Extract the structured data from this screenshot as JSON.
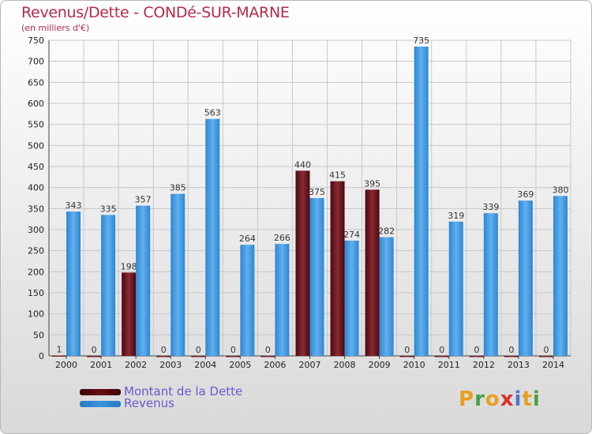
{
  "header": {
    "title": "Revenus/Dette - CONDé-SUR-MARNE",
    "subtitle": "(en milliers d'€)"
  },
  "legend": {
    "debt_label": "Montant de la Dette",
    "revenue_label": "Revenus"
  },
  "logo": {
    "letters": [
      "P",
      "r",
      "o",
      "x",
      "i",
      "t",
      "i"
    ],
    "colors": [
      "#e8a020",
      "#4aa04a",
      "#e8a020",
      "#d93030",
      "#4a7ad0",
      "#e8a020",
      "#4aa04a"
    ]
  },
  "colors": {
    "debt": "#6b0a14",
    "revenue": "#3a94dd",
    "title": "#b52a4a",
    "legend_text": "#6a5acd"
  },
  "chart_data": {
    "type": "bar",
    "categories": [
      "2000",
      "2001",
      "2002",
      "2003",
      "2004",
      "2005",
      "2006",
      "2007",
      "2008",
      "2009",
      "2010",
      "2011",
      "2012",
      "2013",
      "2014"
    ],
    "series": [
      {
        "name": "Montant de la Dette",
        "values": [
          1,
          0,
          198,
          0,
          0,
          0,
          0,
          440,
          415,
          395,
          0,
          0,
          0,
          0,
          0
        ]
      },
      {
        "name": "Revenus",
        "values": [
          343,
          335,
          357,
          385,
          563,
          264,
          266,
          375,
          274,
          282,
          735,
          319,
          339,
          369,
          380
        ]
      }
    ],
    "ylim": [
      0,
      750
    ],
    "yticks": [
      0,
      50,
      100,
      150,
      200,
      250,
      300,
      350,
      400,
      450,
      500,
      550,
      600,
      650,
      700,
      750
    ],
    "grid": true,
    "legend_position": "bottom-left"
  }
}
